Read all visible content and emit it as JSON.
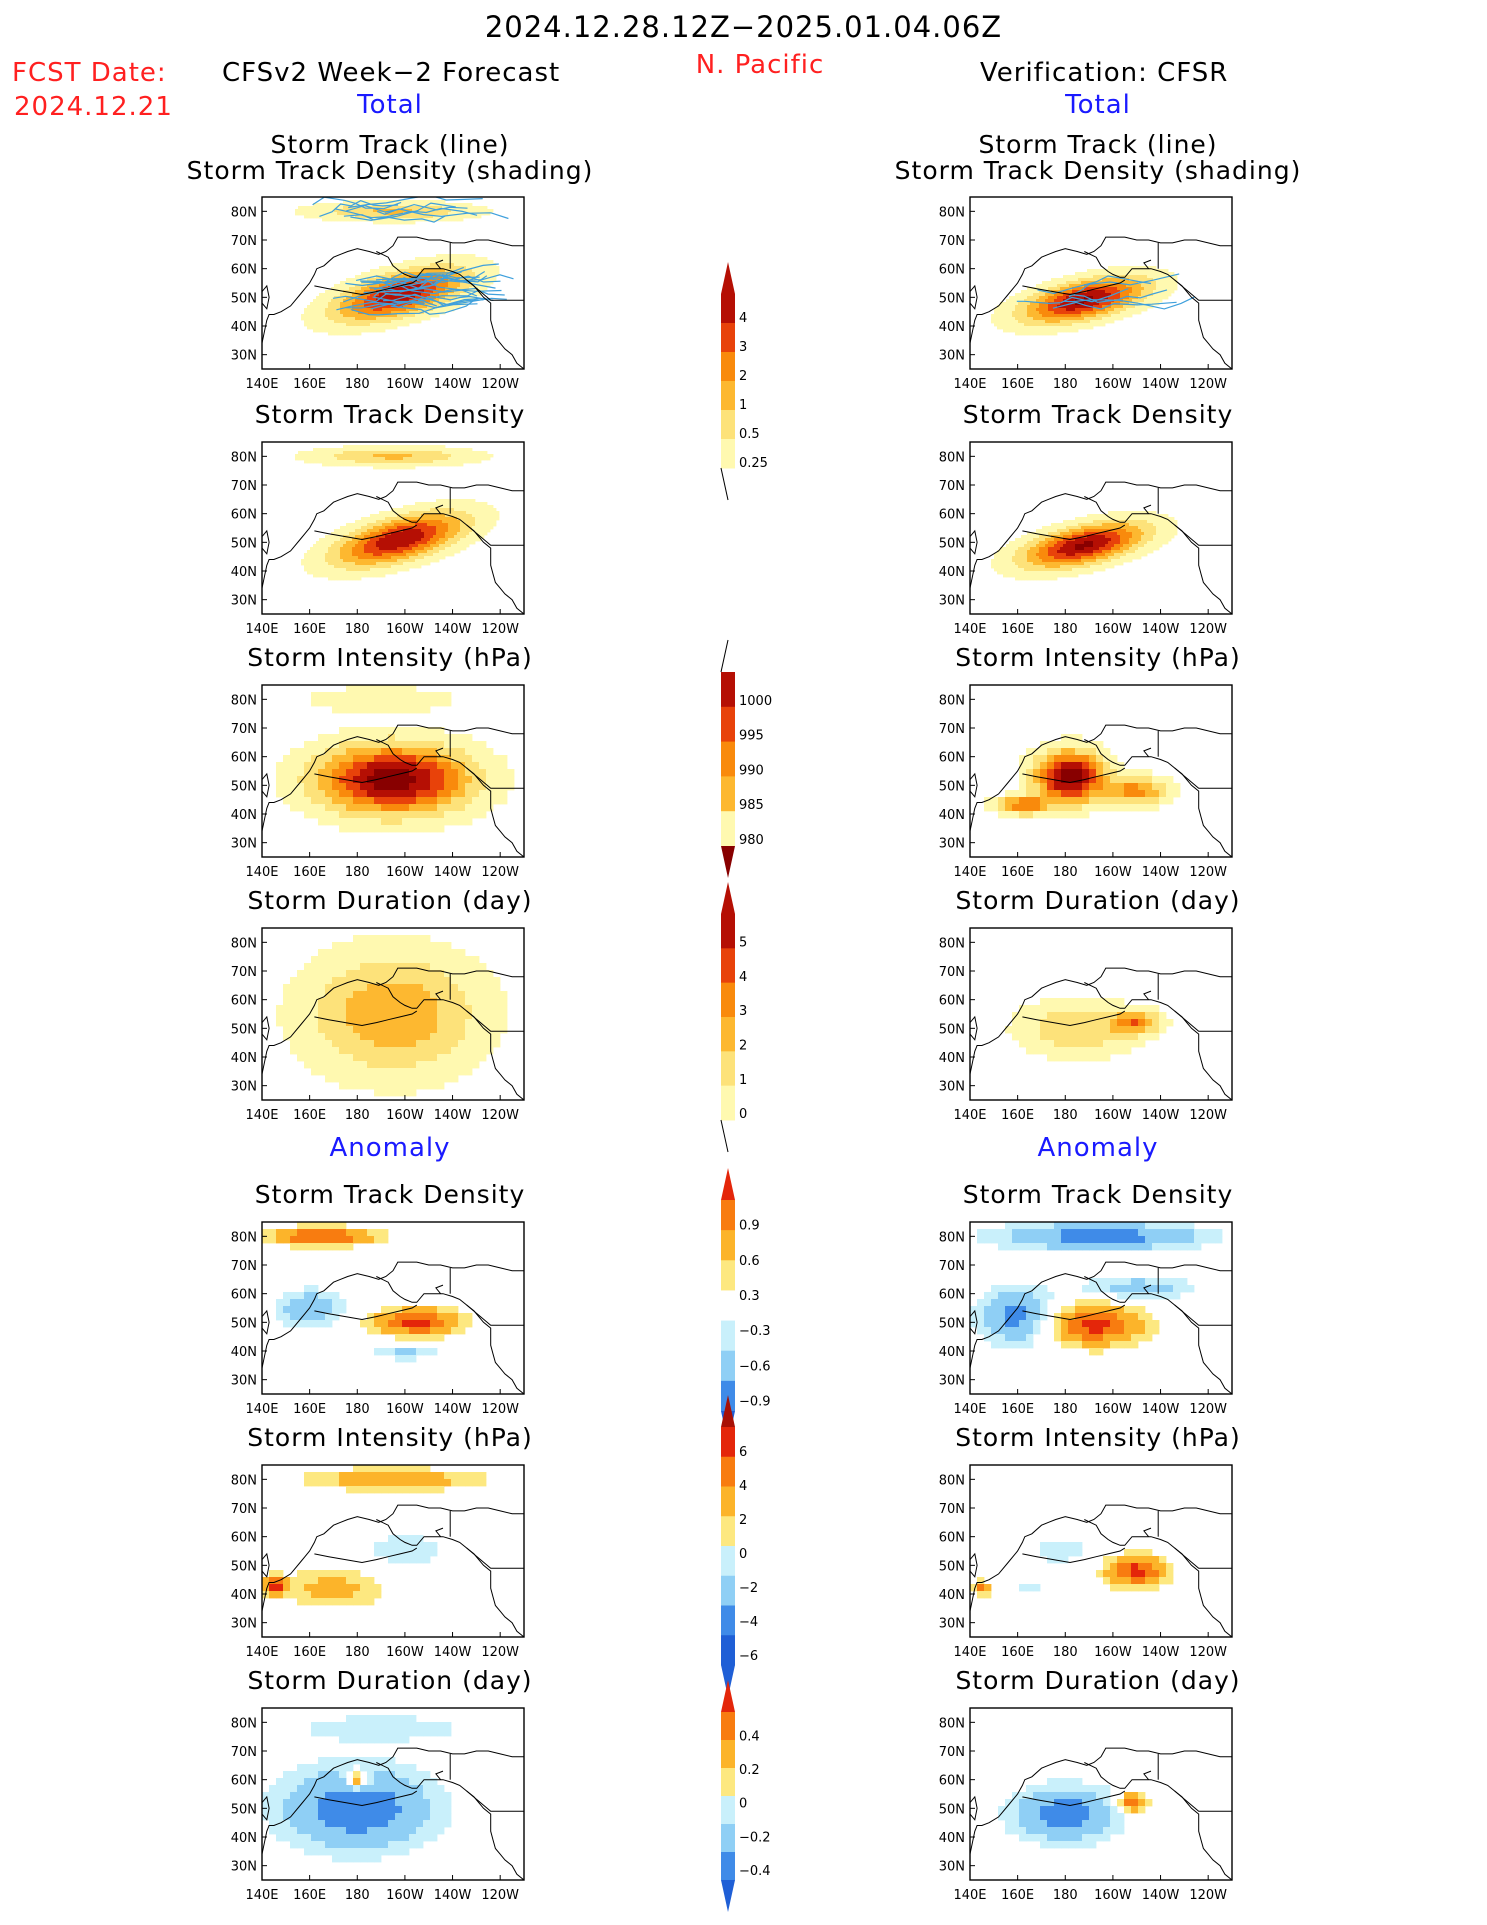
{
  "header": {
    "period": "2024.12.28.12Z−2025.01.04.06Z",
    "fcst_label": "FCST Date:",
    "fcst_date": "2024.12.21",
    "forecast_model": "CFSv2 Week−2 Forecast",
    "region": "N. Pacific",
    "verification": "Verification: CFSR"
  },
  "sections": {
    "total": "Total",
    "anomaly": "Anomaly"
  },
  "panel_titles": {
    "track_line": "Storm Track (line)",
    "track_shading": "Storm Track Density (shading)",
    "track_density": "Storm Track Density",
    "intensity": "Storm Intensity (hPa)",
    "duration": "Storm Duration (day)"
  },
  "axes": {
    "lat_ticks": [
      "80N",
      "70N",
      "60N",
      "50N",
      "40N",
      "30N"
    ],
    "lon_ticks": [
      "140E",
      "160E",
      "180",
      "160W",
      "140W",
      "120W"
    ],
    "lon_range": [
      140,
      250
    ],
    "lat_range": [
      25,
      85
    ]
  },
  "colors": {
    "total_scale": [
      "#fff9b0",
      "#fde27a",
      "#fdb830",
      "#f98a0c",
      "#e8420a",
      "#b50f04",
      "#880000"
    ],
    "anom_scale": [
      "#1f5fd6",
      "#3f8be8",
      "#8fcff5",
      "#c9f0fb",
      "#ffffff",
      "#fde880",
      "#fcb42a",
      "#f87c10",
      "#e4260a"
    ],
    "track_line": "#3fa0dc",
    "coast": "#000000"
  },
  "colorbars": [
    {
      "id": "density_total",
      "labels": [
        "4",
        "3",
        "2",
        "1",
        "0.5",
        "0.25"
      ]
    },
    {
      "id": "intensity_total",
      "labels": [
        "1000",
        "995",
        "990",
        "985",
        "980"
      ]
    },
    {
      "id": "duration_total",
      "labels": [
        "5",
        "4",
        "3",
        "2",
        "1",
        "0"
      ]
    },
    {
      "id": "density_anom",
      "labels": [
        "0.9",
        "0.6",
        "0.3",
        "−0.3",
        "−0.6",
        "−0.9"
      ]
    },
    {
      "id": "intensity_anom",
      "labels": [
        "6",
        "4",
        "2",
        "0",
        "−2",
        "−4",
        "−6"
      ]
    },
    {
      "id": "duration_anom",
      "labels": [
        "0.4",
        "0.2",
        "0",
        "−0.2",
        "−0.4"
      ]
    }
  ],
  "chart_data": [
    {
      "id": "fcst_track",
      "type": "heatmap",
      "title": "Storm Track (line) / Storm Track Density (shading)",
      "source": "CFSv2",
      "scale": "total",
      "lines": true,
      "blobs": [
        {
          "lon": 198,
          "lat": 51,
          "rlon": 34,
          "rlat": 9,
          "val": 5.2,
          "rot": -12
        },
        {
          "lon": 195,
          "lat": 80,
          "rlon": 42,
          "rlat": 4,
          "val": 2.2
        }
      ]
    },
    {
      "id": "fcst_density",
      "type": "heatmap",
      "title": "Storm Track Density",
      "source": "CFSv2",
      "scale": "total",
      "blobs": [
        {
          "lon": 198,
          "lat": 51,
          "rlon": 34,
          "rlat": 9,
          "val": 5.2,
          "rot": -12
        },
        {
          "lon": 195,
          "lat": 80,
          "rlon": 42,
          "rlat": 4,
          "val": 2.2
        }
      ]
    },
    {
      "id": "fcst_intensity",
      "type": "heatmap",
      "title": "Storm Intensity (hPa)",
      "source": "CFSv2",
      "scale": "total",
      "blocky": true,
      "blobs": [
        {
          "lon": 195,
          "lat": 52,
          "rlon": 40,
          "rlat": 15,
          "val": 5.8
        },
        {
          "lon": 190,
          "lat": 80,
          "rlon": 44,
          "rlat": 6,
          "val": 1.0
        }
      ]
    },
    {
      "id": "fcst_duration",
      "type": "heatmap",
      "title": "Storm Duration (day)",
      "source": "CFSv2",
      "scale": "total",
      "blocky": true,
      "blobs": [
        {
          "lon": 195,
          "lat": 55,
          "rlon": 45,
          "rlat": 26,
          "val": 2.8
        }
      ]
    },
    {
      "id": "fcst_density_anom",
      "type": "heatmap",
      "title": "Storm Track Density anomaly",
      "source": "CFSv2",
      "scale": "anom",
      "blocky": true,
      "blobs": [
        {
          "lon": 205,
          "lat": 50,
          "rlon": 23,
          "rlat": 6,
          "val": 1.0
        },
        {
          "lon": 165,
          "lat": 80,
          "rlon": 27,
          "rlat": 4,
          "val": 1.0
        },
        {
          "lon": 160,
          "lat": 55,
          "rlon": 18,
          "rlat": 8,
          "val": -0.6
        },
        {
          "lon": 200,
          "lat": 40,
          "rlon": 20,
          "rlat": 4,
          "val": -0.4
        }
      ]
    },
    {
      "id": "fcst_intensity_anom",
      "type": "heatmap",
      "title": "Storm Intensity (hPa) anomaly",
      "source": "CFSv2",
      "scale": "anom",
      "blocky": true,
      "blobs": [
        {
          "lon": 195,
          "lat": 80,
          "rlon": 48,
          "rlat": 5,
          "val": 3.0
        },
        {
          "lon": 170,
          "lat": 42,
          "rlon": 28,
          "rlat": 9,
          "val": 2.5
        },
        {
          "lon": 200,
          "lat": 55,
          "rlon": 26,
          "rlat": 10,
          "val": -1.5
        },
        {
          "lon": 145,
          "lat": 43,
          "rlon": 6,
          "rlat": 4,
          "val": 5.5
        }
      ]
    },
    {
      "id": "fcst_duration_anom",
      "type": "heatmap",
      "title": "Storm Duration (day) anomaly",
      "source": "CFSv2",
      "scale": "anom",
      "blocky": true,
      "blobs": [
        {
          "lon": 180,
          "lat": 50,
          "rlon": 40,
          "rlat": 18,
          "val": -0.4
        },
        {
          "lon": 190,
          "lat": 78,
          "rlon": 48,
          "rlat": 6,
          "val": -0.15
        },
        {
          "lon": 180,
          "lat": 60,
          "rlon": 6,
          "rlat": 4,
          "val": 0.45
        }
      ]
    },
    {
      "id": "obs_track",
      "type": "heatmap",
      "title": "Storm Track (line) / Storm Track Density (shading)",
      "source": "CFSR",
      "scale": "total",
      "lines": true,
      "blobs": [
        {
          "lon": 188,
          "lat": 49,
          "rlon": 32,
          "rlat": 8,
          "val": 5.4,
          "rot": -10
        }
      ]
    },
    {
      "id": "obs_density",
      "type": "heatmap",
      "title": "Storm Track Density",
      "source": "CFSR",
      "scale": "total",
      "blobs": [
        {
          "lon": 188,
          "lat": 49,
          "rlon": 32,
          "rlat": 8,
          "val": 5.4,
          "rot": -10
        }
      ]
    },
    {
      "id": "obs_intensity",
      "type": "heatmap",
      "title": "Storm Intensity (hPa)",
      "source": "CFSR",
      "scale": "total",
      "blocky": true,
      "blobs": [
        {
          "lon": 182,
          "lat": 53,
          "rlon": 18,
          "rlat": 11,
          "val": 6.0
        },
        {
          "lon": 210,
          "lat": 48,
          "rlon": 16,
          "rlat": 6,
          "val": 3.2
        },
        {
          "lon": 162,
          "lat": 43,
          "rlon": 14,
          "rlat": 4,
          "val": 3.5
        }
      ]
    },
    {
      "id": "obs_duration",
      "type": "heatmap",
      "title": "Storm Duration (day)",
      "source": "CFSR",
      "scale": "total",
      "blocky": true,
      "blobs": [
        {
          "lon": 185,
          "lat": 50,
          "rlon": 30,
          "rlat": 12,
          "val": 2.0
        },
        {
          "lon": 210,
          "lat": 52,
          "rlon": 12,
          "rlat": 5,
          "val": 3.1
        }
      ]
    },
    {
      "id": "obs_density_anom",
      "type": "heatmap",
      "title": "Storm Track Density anomaly",
      "source": "CFSR",
      "scale": "anom",
      "blocky": true,
      "blobs": [
        {
          "lon": 195,
          "lat": 80,
          "rlon": 55,
          "rlat": 6,
          "val": -0.8
        },
        {
          "lon": 160,
          "lat": 52,
          "rlon": 20,
          "rlat": 12,
          "val": -0.8
        },
        {
          "lon": 192,
          "lat": 49,
          "rlon": 26,
          "rlat": 9,
          "val": 1.0
        },
        {
          "lon": 210,
          "lat": 62,
          "rlon": 30,
          "rlat": 5,
          "val": -0.5
        }
      ]
    },
    {
      "id": "obs_intensity_anom",
      "type": "heatmap",
      "title": "Storm Intensity (hPa) anomaly",
      "source": "CFSR",
      "scale": "anom",
      "blocky": true,
      "blobs": [
        {
          "lon": 210,
          "lat": 48,
          "rlon": 16,
          "rlat": 7,
          "val": 6.0
        },
        {
          "lon": 178,
          "lat": 55,
          "rlon": 18,
          "rlat": 6,
          "val": -1.8
        },
        {
          "lon": 165,
          "lat": 42,
          "rlon": 14,
          "rlat": 4,
          "val": -1.2
        },
        {
          "lon": 145,
          "lat": 42,
          "rlon": 5,
          "rlat": 3,
          "val": 4.5
        }
      ]
    },
    {
      "id": "obs_duration_anom",
      "type": "heatmap",
      "title": "Storm Duration (day) anomaly",
      "source": "CFSR",
      "scale": "anom",
      "blocky": true,
      "blobs": [
        {
          "lon": 180,
          "lat": 48,
          "rlon": 28,
          "rlat": 12,
          "val": -0.35
        },
        {
          "lon": 208,
          "lat": 52,
          "rlon": 8,
          "rlat": 4,
          "val": 0.42
        }
      ]
    }
  ]
}
